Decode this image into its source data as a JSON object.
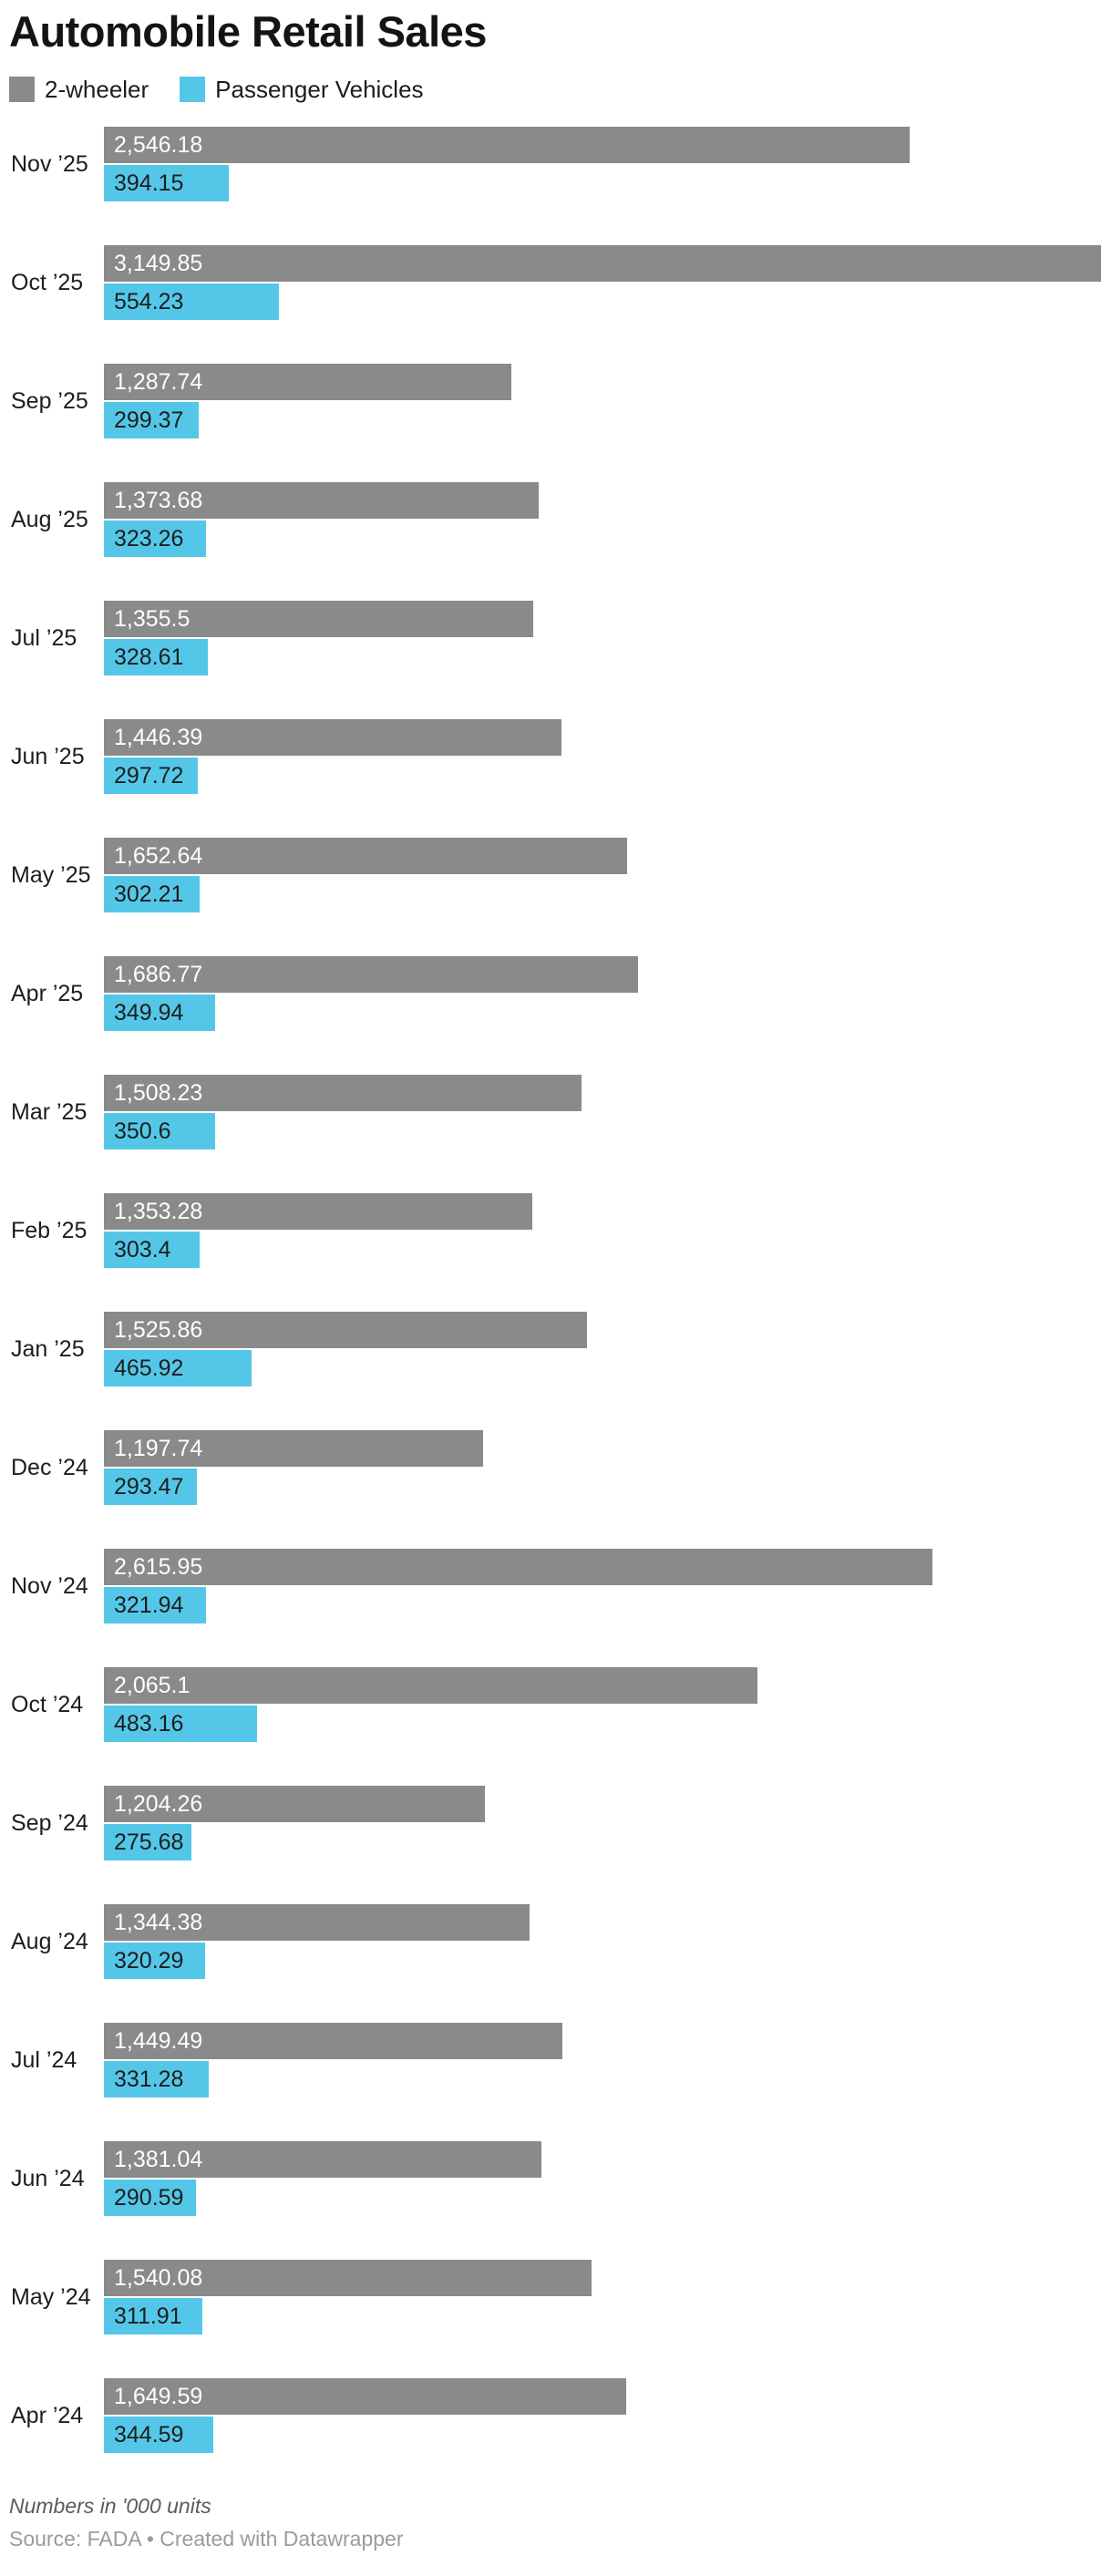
{
  "title": "Automobile Retail Sales",
  "legend": {
    "items": [
      {
        "label": "2-wheeler",
        "color": "#8a8a8a"
      },
      {
        "label": "Passenger Vehicles",
        "color": "#54c7e8"
      }
    ]
  },
  "footer": {
    "note": "Numbers in '000 units",
    "source": "Source: FADA • Created with Datawrapper"
  },
  "chart_data": {
    "type": "bar",
    "orientation": "horizontal",
    "title": "Automobile Retail Sales",
    "unit": "'000 units",
    "xlim": [
      0,
      3149.85
    ],
    "grid": false,
    "legend_position": "top",
    "value_labels": "inside-start",
    "categories": [
      "Nov ’25",
      "Oct ’25",
      "Sep ’25",
      "Aug ’25",
      "Jul ’25",
      "Jun ’25",
      "May ’25",
      "Apr ’25",
      "Mar ’25",
      "Feb ’25",
      "Jan ’25",
      "Dec ’24",
      "Nov ’24",
      "Oct ’24",
      "Sep ’24",
      "Aug ’24",
      "Jul ’24",
      "Jun ’24",
      "May ’24",
      "Apr ’24"
    ],
    "series": [
      {
        "name": "2-wheeler",
        "color": "#8a8a8a",
        "values": [
          2546.18,
          3149.85,
          1287.74,
          1373.68,
          1355.5,
          1446.39,
          1652.64,
          1686.77,
          1508.23,
          1353.28,
          1525.86,
          1197.74,
          2615.95,
          2065.1,
          1204.26,
          1344.38,
          1449.49,
          1381.04,
          1540.08,
          1649.59
        ],
        "labels": [
          "2,546.18",
          "3,149.85",
          "1,287.74",
          "1,373.68",
          "1,355.5",
          "1,446.39",
          "1,652.64",
          "1,686.77",
          "1,508.23",
          "1,353.28",
          "1,525.86",
          "1,197.74",
          "2,615.95",
          "2,065.1",
          "1,204.26",
          "1,344.38",
          "1,449.49",
          "1,381.04",
          "1,540.08",
          "1,649.59"
        ]
      },
      {
        "name": "Passenger Vehicles",
        "color": "#54c7e8",
        "values": [
          394.15,
          554.23,
          299.37,
          323.26,
          328.61,
          297.72,
          302.21,
          349.94,
          350.6,
          303.4,
          465.92,
          293.47,
          321.94,
          483.16,
          275.68,
          320.29,
          331.28,
          290.59,
          311.91,
          344.59
        ],
        "labels": [
          "394.15",
          "554.23",
          "299.37",
          "323.26",
          "328.61",
          "297.72",
          "302.21",
          "349.94",
          "350.6",
          "303.4",
          "465.92",
          "293.47",
          "321.94",
          "483.16",
          "275.68",
          "320.29",
          "331.28",
          "290.59",
          "311.91",
          "344.59"
        ]
      }
    ]
  }
}
